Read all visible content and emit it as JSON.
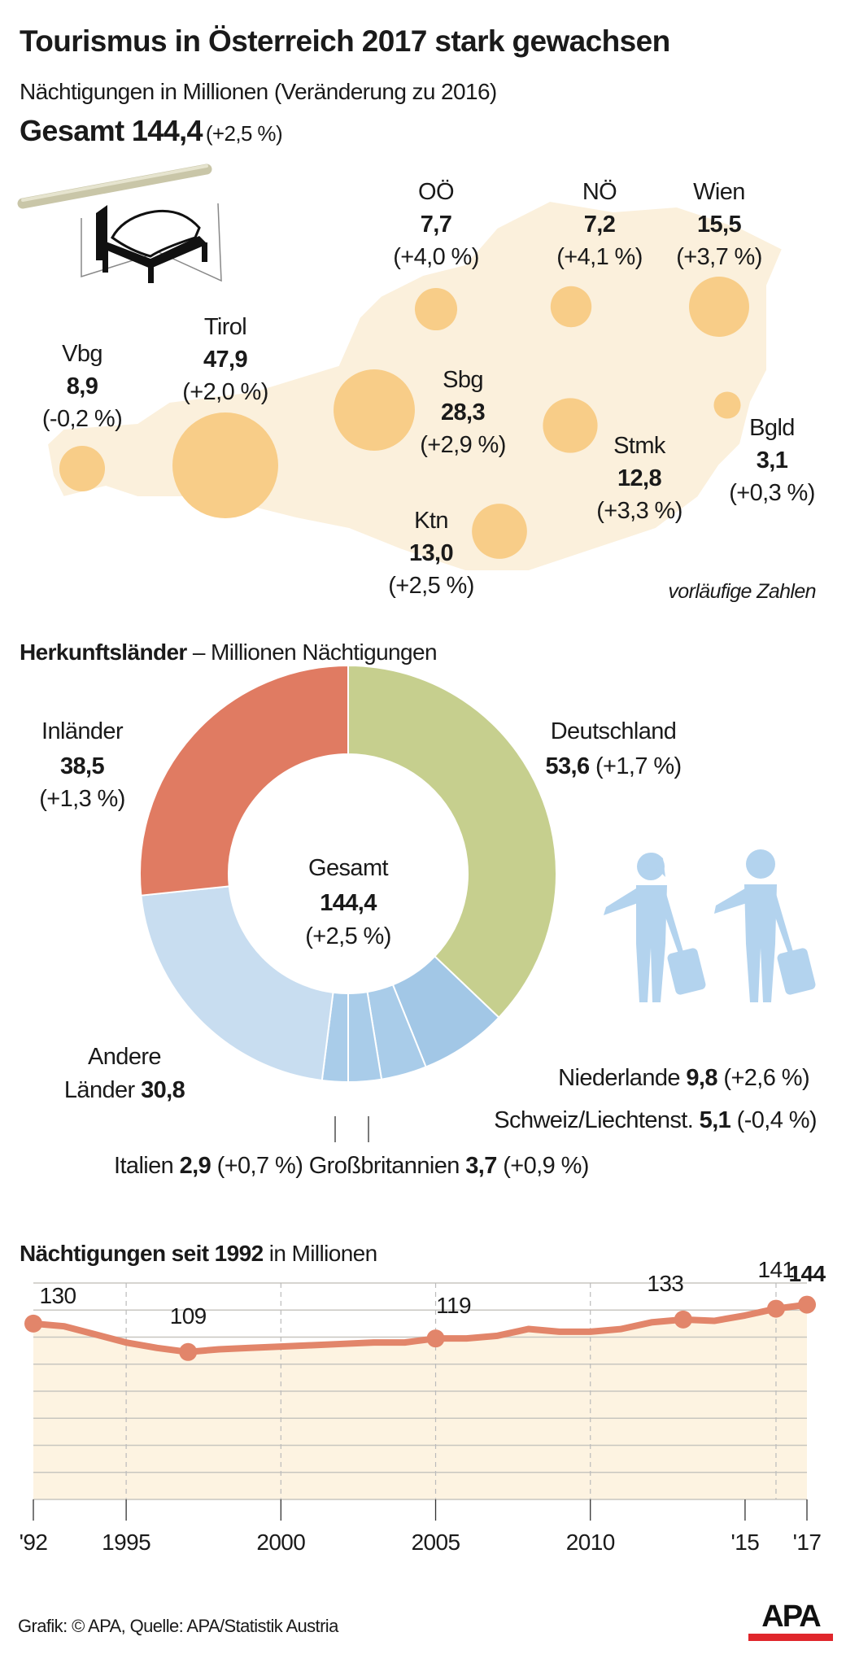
{
  "header": {
    "title": "Tourismus in Österreich 2017 stark gewachsen",
    "subtitle": "Nächtigungen in Millionen (Veränderung zu 2016)",
    "total_label": "Gesamt 144,4",
    "total_change": "(+2,5 %)"
  },
  "map": {
    "note": "vorläufige Zahlen",
    "icon": "bed-sign-icon",
    "regions": [
      {
        "name": "Vbg",
        "value": "8,9",
        "change": "(-0,2 %)",
        "v": 8.9
      },
      {
        "name": "Tirol",
        "value": "47,9",
        "change": "(+2,0 %)",
        "v": 47.9
      },
      {
        "name": "Sbg",
        "value": "28,3",
        "change": "(+2,9 %)",
        "v": 28.3
      },
      {
        "name": "OÖ",
        "value": "7,7",
        "change": "(+4,0 %)",
        "v": 7.7
      },
      {
        "name": "NÖ",
        "value": "7,2",
        "change": "(+4,1 %)",
        "v": 7.2
      },
      {
        "name": "Wien",
        "value": "15,5",
        "change": "(+3,7 %)",
        "v": 15.5
      },
      {
        "name": "Stmk",
        "value": "12,8",
        "change": "(+3,3 %)",
        "v": 12.8
      },
      {
        "name": "Bgld",
        "value": "3,1",
        "change": "(+0,3 %)",
        "v": 3.1
      },
      {
        "name": "Ktn",
        "value": "13,0",
        "change": "(+2,5 %)",
        "v": 13.0
      }
    ],
    "colors": {
      "land": "#fbf0dc",
      "bubble": "#f8cd88"
    }
  },
  "origin": {
    "heading_bold": "Herkunftsländer",
    "heading_rest": "– Millionen Nächtigungen",
    "center": {
      "label": "Gesamt",
      "value": "144,4",
      "change": "(+2,5 %)"
    },
    "labels": {
      "inland_name": "Inländer",
      "inland_value": "38,5",
      "inland_change": "(+1,3 %)",
      "de_name": "Deutschland",
      "de_value": "53,6",
      "de_change": "(+1,7 %)",
      "other_name1": "Andere",
      "other_name2": "Länder",
      "other_value": "30,8",
      "nl_name": "Niederlande",
      "nl_value": "9,8",
      "nl_change": "(+2,6 %)",
      "ch_name": "Schweiz/Liechtenst.",
      "ch_value": "5,1",
      "ch_change": "(-0,4 %)",
      "it_name": "Italien",
      "it_value": "2,9",
      "it_change": "(+0,7 %)",
      "gb_name": "Großbritannien",
      "gb_value": "3,7",
      "gb_change": "(+0,9 %)"
    },
    "icon": "travelers-icon"
  },
  "chart_data": [
    {
      "type": "pie",
      "title": "Herkunftsländer – Millionen Nächtigungen",
      "slices": [
        {
          "name": "Deutschland",
          "value": 53.6,
          "color": "#c6cf8e"
        },
        {
          "name": "Niederlande",
          "value": 9.8,
          "color": "#a2c7e6"
        },
        {
          "name": "Schweiz/Liechtenst.",
          "value": 5.1,
          "color": "#a9cce9"
        },
        {
          "name": "Großbritannien",
          "value": 3.7,
          "color": "#a9cce9"
        },
        {
          "name": "Italien",
          "value": 2.9,
          "color": "#a9cce9"
        },
        {
          "name": "Andere Länder",
          "value": 30.8,
          "color": "#c8ddf0"
        },
        {
          "name": "Inländer",
          "value": 38.5,
          "color": "#e07b62"
        }
      ]
    },
    {
      "type": "line",
      "title_bold": "Nächtigungen seit 1992",
      "title_rest": "in Millionen",
      "x": [
        1992,
        1993,
        1994,
        1995,
        1996,
        1997,
        1998,
        1999,
        2000,
        2001,
        2002,
        2003,
        2004,
        2005,
        2006,
        2007,
        2008,
        2009,
        2010,
        2011,
        2012,
        2013,
        2014,
        2015,
        2016,
        2017
      ],
      "values": [
        130,
        128,
        122,
        116,
        112,
        109,
        111,
        112,
        113,
        114,
        115,
        116,
        116,
        119,
        119,
        121,
        126,
        124,
        124,
        126,
        131,
        133,
        132,
        136,
        141,
        144
      ],
      "ylim": [
        0,
        160
      ],
      "grid": true,
      "tick_labels": [
        {
          "year": 1992,
          "label": "'92"
        },
        {
          "year": 1995,
          "label": "1995"
        },
        {
          "year": 2000,
          "label": "2000"
        },
        {
          "year": 2005,
          "label": "2005"
        },
        {
          "year": 2010,
          "label": "2010"
        },
        {
          "year": 2015,
          "label": "'15"
        },
        {
          "year": 2017,
          "label": "'17"
        }
      ],
      "point_labels": [
        {
          "year": 1992,
          "label": "130"
        },
        {
          "year": 1997,
          "label": "109"
        },
        {
          "year": 2005,
          "label": "119"
        },
        {
          "year": 2013,
          "label": "133"
        },
        {
          "year": 2016,
          "label": "141"
        },
        {
          "year": 2017,
          "label": "144"
        }
      ],
      "color": "#e2856a",
      "fill": "#fdf3e1"
    }
  ],
  "footer": {
    "source": "Grafik: © APA, Quelle: APA/Statistik Austria",
    "logo": "APA"
  }
}
